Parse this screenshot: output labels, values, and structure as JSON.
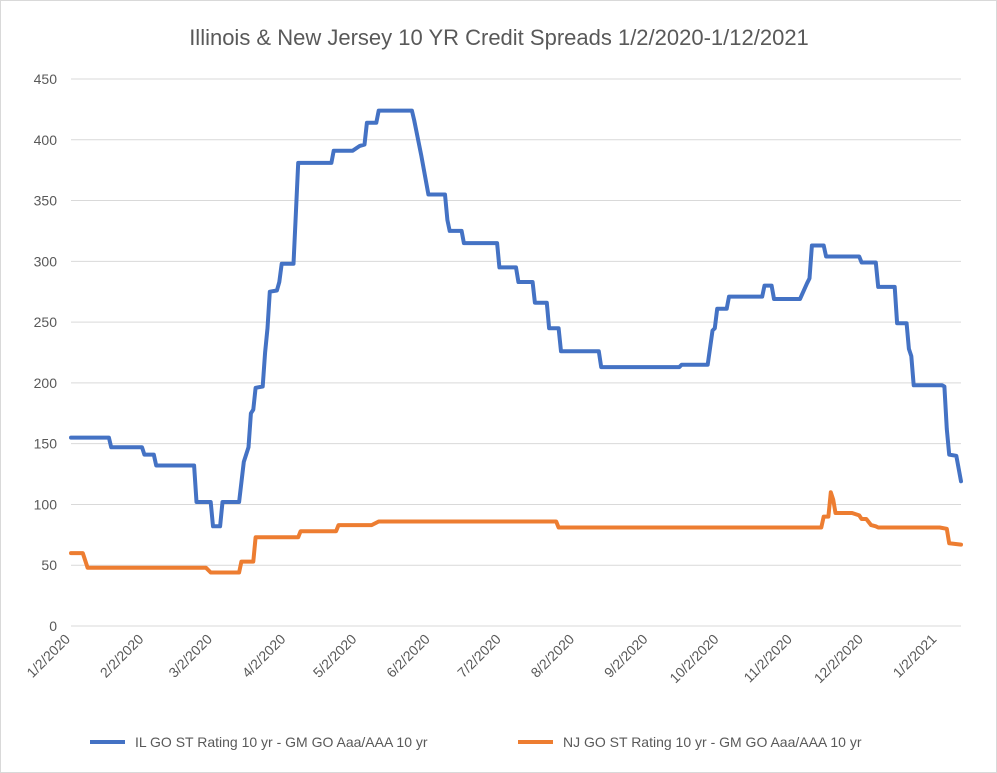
{
  "chart_data": {
    "type": "line",
    "title": "Illinois & New Jersey 10 YR Credit Spreads 1/2/2020-1/12/2021",
    "xlabel": "",
    "ylabel": "",
    "ylim": [
      0,
      450
    ],
    "yticks": [
      0,
      50,
      100,
      150,
      200,
      250,
      300,
      350,
      400,
      450
    ],
    "xlim": [
      "2020-01-02",
      "2021-01-12"
    ],
    "xtick_labels": [
      "1/2/2020",
      "2/2/2020",
      "3/2/2020",
      "4/2/2020",
      "5/2/2020",
      "6/2/2020",
      "7/2/2020",
      "8/2/2020",
      "9/2/2020",
      "10/2/2020",
      "11/2/2020",
      "12/2/2020",
      "1/2/2021"
    ],
    "xtick_dates": [
      "2020-01-02",
      "2020-02-02",
      "2020-03-02",
      "2020-04-02",
      "2020-05-02",
      "2020-06-02",
      "2020-07-02",
      "2020-08-02",
      "2020-09-02",
      "2020-10-02",
      "2020-11-02",
      "2020-12-02",
      "2021-01-02"
    ],
    "grid": true,
    "legend_position": "bottom",
    "series": [
      {
        "name": "IL GO ST Rating 10 yr - GM GO Aaa/AAA 10 yr",
        "color": "#4472c4",
        "points": [
          [
            "2020-01-02",
            155
          ],
          [
            "2020-01-18",
            155
          ],
          [
            "2020-01-19",
            147
          ],
          [
            "2020-02-01",
            147
          ],
          [
            "2020-02-02",
            141
          ],
          [
            "2020-02-06",
            141
          ],
          [
            "2020-02-07",
            132
          ],
          [
            "2020-02-23",
            132
          ],
          [
            "2020-02-24",
            102
          ],
          [
            "2020-03-01",
            102
          ],
          [
            "2020-03-02",
            82
          ],
          [
            "2020-03-05",
            82
          ],
          [
            "2020-03-06",
            102
          ],
          [
            "2020-03-13",
            102
          ],
          [
            "2020-03-15",
            135
          ],
          [
            "2020-03-17",
            147
          ],
          [
            "2020-03-18",
            175
          ],
          [
            "2020-03-19",
            178
          ],
          [
            "2020-03-20",
            196
          ],
          [
            "2020-03-23",
            197
          ],
          [
            "2020-03-24",
            225
          ],
          [
            "2020-03-25",
            245
          ],
          [
            "2020-03-26",
            275
          ],
          [
            "2020-03-29",
            276
          ],
          [
            "2020-03-30",
            283
          ],
          [
            "2020-03-31",
            298
          ],
          [
            "2020-04-05",
            298
          ],
          [
            "2020-04-06",
            340
          ],
          [
            "2020-04-07",
            381
          ],
          [
            "2020-04-21",
            381
          ],
          [
            "2020-04-22",
            391
          ],
          [
            "2020-04-30",
            391
          ],
          [
            "2020-05-03",
            395
          ],
          [
            "2020-05-05",
            396
          ],
          [
            "2020-05-06",
            414
          ],
          [
            "2020-05-10",
            414
          ],
          [
            "2020-05-11",
            424
          ],
          [
            "2020-05-25",
            424
          ],
          [
            "2020-05-26",
            416
          ],
          [
            "2020-05-29",
            387
          ],
          [
            "2020-06-01",
            355
          ],
          [
            "2020-06-08",
            355
          ],
          [
            "2020-06-09",
            334
          ],
          [
            "2020-06-10",
            325
          ],
          [
            "2020-06-15",
            325
          ],
          [
            "2020-06-16",
            315
          ],
          [
            "2020-06-30",
            315
          ],
          [
            "2020-07-01",
            295
          ],
          [
            "2020-07-08",
            295
          ],
          [
            "2020-07-09",
            283
          ],
          [
            "2020-07-15",
            283
          ],
          [
            "2020-07-16",
            266
          ],
          [
            "2020-07-21",
            266
          ],
          [
            "2020-07-22",
            245
          ],
          [
            "2020-07-26",
            245
          ],
          [
            "2020-07-27",
            226
          ],
          [
            "2020-08-12",
            226
          ],
          [
            "2020-08-13",
            213
          ],
          [
            "2020-09-15",
            213
          ],
          [
            "2020-09-16",
            215
          ],
          [
            "2020-09-27",
            215
          ],
          [
            "2020-09-29",
            243
          ],
          [
            "2020-09-30",
            245
          ],
          [
            "2020-10-01",
            261
          ],
          [
            "2020-10-05",
            261
          ],
          [
            "2020-10-06",
            271
          ],
          [
            "2020-10-20",
            271
          ],
          [
            "2020-10-21",
            280
          ],
          [
            "2020-10-24",
            280
          ],
          [
            "2020-10-25",
            269
          ],
          [
            "2020-11-05",
            269
          ],
          [
            "2020-11-08",
            282
          ],
          [
            "2020-11-09",
            286
          ],
          [
            "2020-11-10",
            313
          ],
          [
            "2020-11-15",
            313
          ],
          [
            "2020-11-16",
            304
          ],
          [
            "2020-11-30",
            304
          ],
          [
            "2020-12-01",
            299
          ],
          [
            "2020-12-07",
            299
          ],
          [
            "2020-12-08",
            279
          ],
          [
            "2020-12-15",
            279
          ],
          [
            "2020-12-16",
            249
          ],
          [
            "2020-12-20",
            249
          ],
          [
            "2020-12-21",
            228
          ],
          [
            "2020-12-22",
            222
          ],
          [
            "2020-12-23",
            198
          ],
          [
            "2021-01-04",
            198
          ],
          [
            "2021-01-05",
            197
          ],
          [
            "2021-01-06",
            162
          ],
          [
            "2021-01-07",
            141
          ],
          [
            "2021-01-10",
            140
          ],
          [
            "2021-01-12",
            119
          ]
        ]
      },
      {
        "name": "NJ GO ST Rating 10 yr - GM GO Aaa/AAA 10 yr",
        "color": "#ed7d31",
        "points": [
          [
            "2020-01-02",
            60
          ],
          [
            "2020-01-07",
            60
          ],
          [
            "2020-01-09",
            48
          ],
          [
            "2020-02-28",
            48
          ],
          [
            "2020-03-01",
            44
          ],
          [
            "2020-03-13",
            44
          ],
          [
            "2020-03-14",
            53
          ],
          [
            "2020-03-19",
            53
          ],
          [
            "2020-03-20",
            73
          ],
          [
            "2020-04-07",
            73
          ],
          [
            "2020-04-08",
            78
          ],
          [
            "2020-04-23",
            78
          ],
          [
            "2020-04-24",
            83
          ],
          [
            "2020-05-08",
            83
          ],
          [
            "2020-05-11",
            86
          ],
          [
            "2020-07-25",
            86
          ],
          [
            "2020-07-26",
            81
          ],
          [
            "2020-11-14",
            81
          ],
          [
            "2020-11-15",
            90
          ],
          [
            "2020-11-17",
            90
          ],
          [
            "2020-11-18",
            110
          ],
          [
            "2020-11-19",
            104
          ],
          [
            "2020-11-20",
            93
          ],
          [
            "2020-11-27",
            93
          ],
          [
            "2020-11-30",
            91
          ],
          [
            "2020-12-01",
            88
          ],
          [
            "2020-12-03",
            88
          ],
          [
            "2020-12-05",
            83
          ],
          [
            "2020-12-07",
            82
          ],
          [
            "2020-12-08",
            81
          ],
          [
            "2021-01-03",
            81
          ],
          [
            "2021-01-06",
            80
          ],
          [
            "2021-01-07",
            68
          ],
          [
            "2021-01-12",
            67
          ]
        ]
      }
    ]
  }
}
